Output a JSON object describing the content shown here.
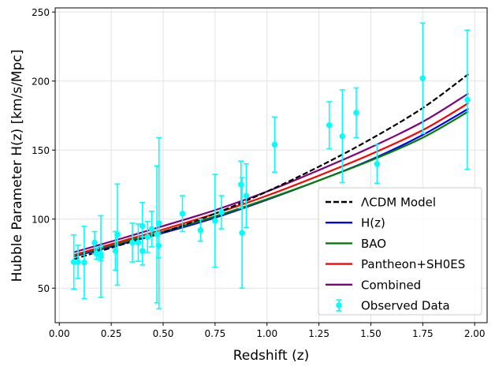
{
  "chart_data": {
    "type": "line",
    "title": "",
    "xlabel": "Redshift (z)",
    "ylabel": "Hubble Parameter H(z) [km/s/Mpc]",
    "xlim": [
      -0.02,
      2.06
    ],
    "ylim": [
      25,
      253
    ],
    "xticks": [
      0.0,
      0.25,
      0.5,
      0.75,
      1.0,
      1.25,
      1.5,
      1.75,
      2.0
    ],
    "xtick_labels": [
      "0.00",
      "0.25",
      "0.50",
      "0.75",
      "1.00",
      "1.25",
      "1.50",
      "1.75",
      "2.00"
    ],
    "yticks": [
      50,
      100,
      150,
      200,
      250
    ],
    "ytick_labels": [
      "50",
      "100",
      "150",
      "200",
      "250"
    ],
    "grid": true,
    "legend_position": "lower-right",
    "series": [
      {
        "name": "ΛCDM Model",
        "color": "#000000",
        "dash": "dashed",
        "x": [
          0.07,
          0.3,
          0.5,
          0.75,
          1.0,
          1.25,
          1.5,
          1.75,
          1.97
        ],
        "y": [
          71,
          81.5,
          90.5,
          104,
          120,
          138,
          158,
          180.5,
          205
        ]
      },
      {
        "name": "H(z)",
        "color": "#0000ff",
        "dash": "solid",
        "x": [
          0.07,
          0.3,
          0.5,
          0.75,
          1.0,
          1.25,
          1.5,
          1.75,
          1.97
        ],
        "y": [
          73,
          82,
          90,
          101,
          114,
          128,
          143,
          161,
          180
        ]
      },
      {
        "name": "BAO",
        "color": "#008000",
        "dash": "solid",
        "x": [
          0.07,
          0.3,
          0.5,
          0.75,
          1.0,
          1.25,
          1.5,
          1.75,
          1.97
        ],
        "y": [
          73.5,
          83,
          91,
          102,
          114.5,
          128,
          142.5,
          159,
          178
        ]
      },
      {
        "name": "Pantheon+SH0ES",
        "color": "#ff0000",
        "dash": "solid",
        "x": [
          0.07,
          0.3,
          0.5,
          0.75,
          1.0,
          1.25,
          1.5,
          1.75,
          1.97
        ],
        "y": [
          74,
          84,
          92.5,
          104,
          117,
          131.5,
          147,
          164.5,
          184
        ]
      },
      {
        "name": "Combined",
        "color": "#800080",
        "dash": "solid",
        "x": [
          0.07,
          0.3,
          0.5,
          0.75,
          1.0,
          1.25,
          1.5,
          1.75,
          1.97
        ],
        "y": [
          76,
          86,
          95,
          106.5,
          120,
          135.5,
          152,
          170.5,
          191
        ]
      }
    ],
    "observed": {
      "name": "Observed Data",
      "color": "#00ffff",
      "points": [
        {
          "z": 0.07,
          "H": 69,
          "err": 19.6
        },
        {
          "z": 0.09,
          "H": 69,
          "err": 12
        },
        {
          "z": 0.12,
          "H": 68.6,
          "err": 26.2
        },
        {
          "z": 0.17,
          "H": 83,
          "err": 8
        },
        {
          "z": 0.179,
          "H": 75,
          "err": 4
        },
        {
          "z": 0.199,
          "H": 75,
          "err": 5
        },
        {
          "z": 0.2,
          "H": 72.9,
          "err": 29.6
        },
        {
          "z": 0.27,
          "H": 77,
          "err": 14
        },
        {
          "z": 0.28,
          "H": 88.8,
          "err": 36.6
        },
        {
          "z": 0.352,
          "H": 83,
          "err": 14
        },
        {
          "z": 0.38,
          "H": 83,
          "err": 13.5
        },
        {
          "z": 0.4,
          "H": 95,
          "err": 17
        },
        {
          "z": 0.4004,
          "H": 77,
          "err": 10.2
        },
        {
          "z": 0.425,
          "H": 87.1,
          "err": 11.2
        },
        {
          "z": 0.445,
          "H": 92.8,
          "err": 12.9
        },
        {
          "z": 0.47,
          "H": 89,
          "err": 49.6
        },
        {
          "z": 0.4783,
          "H": 80.9,
          "err": 9
        },
        {
          "z": 0.48,
          "H": 97,
          "err": 62
        },
        {
          "z": 0.593,
          "H": 104,
          "err": 13
        },
        {
          "z": 0.68,
          "H": 92,
          "err": 8
        },
        {
          "z": 0.75,
          "H": 98.8,
          "err": 33.6
        },
        {
          "z": 0.781,
          "H": 105,
          "err": 12
        },
        {
          "z": 0.875,
          "H": 125,
          "err": 17
        },
        {
          "z": 0.88,
          "H": 90,
          "err": 40
        },
        {
          "z": 0.9,
          "H": 117,
          "err": 23
        },
        {
          "z": 1.037,
          "H": 154,
          "err": 20
        },
        {
          "z": 1.3,
          "H": 168,
          "err": 17
        },
        {
          "z": 1.363,
          "H": 160,
          "err": 33.6
        },
        {
          "z": 1.43,
          "H": 177,
          "err": 18
        },
        {
          "z": 1.53,
          "H": 140,
          "err": 14
        },
        {
          "z": 1.75,
          "H": 202,
          "err": 40
        },
        {
          "z": 1.965,
          "H": 186.5,
          "err": 50.4
        }
      ]
    }
  }
}
